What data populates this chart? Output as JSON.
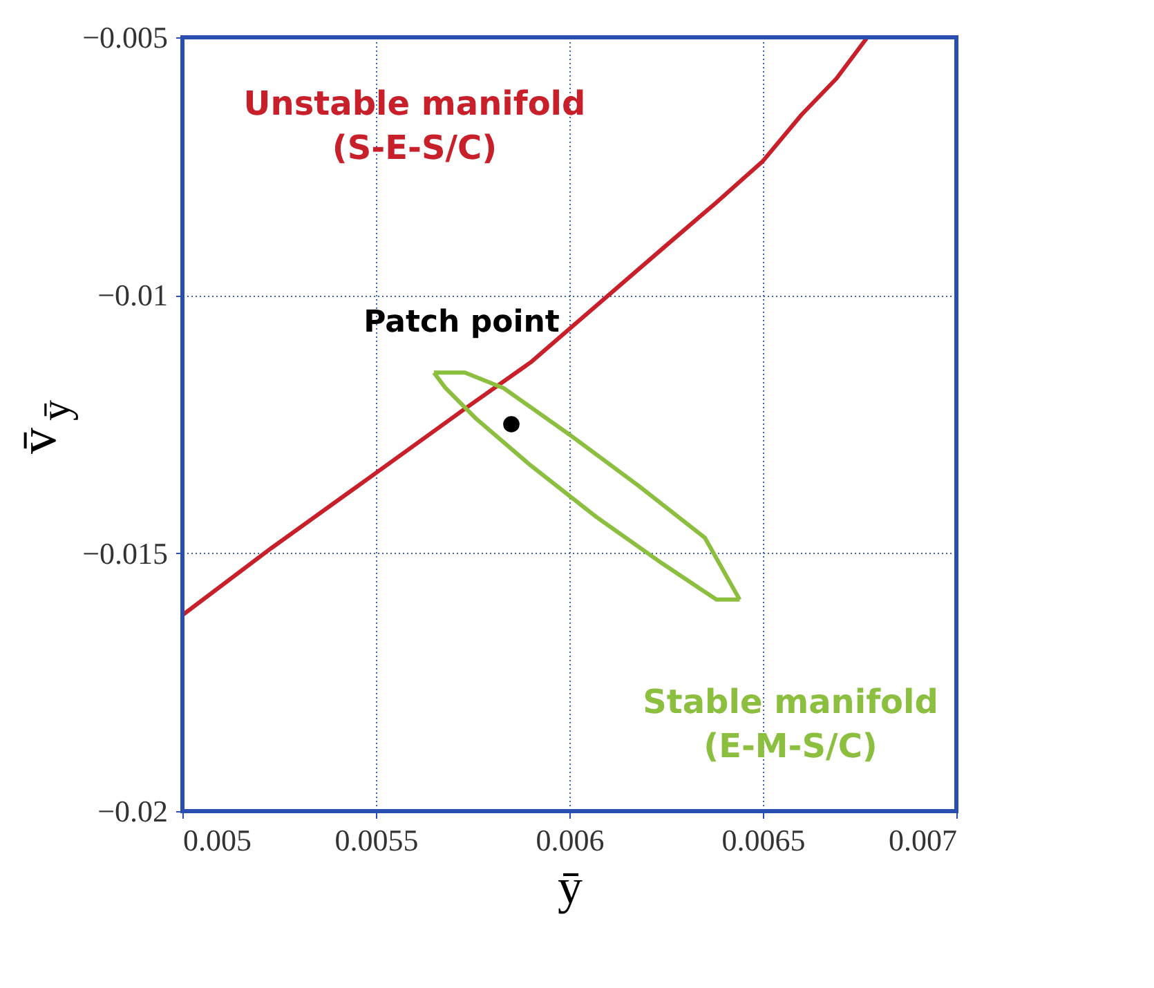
{
  "chart_data": {
    "type": "line",
    "xlabel": "ȳ",
    "ylabel": "v̄$_{ȳ}$",
    "xlim": [
      0.005,
      0.007
    ],
    "ylim": [
      -0.02,
      -0.005
    ],
    "xticks": [
      0.005,
      0.0055,
      0.006,
      0.0065,
      0.007
    ],
    "yticks": [
      -0.02,
      -0.015,
      -0.01,
      -0.005
    ],
    "grid": true,
    "line_style": "solid",
    "series": [
      {
        "name": "Unstable manifold (S-E-S/C)",
        "color": "#c8202a",
        "x": [
          0.005,
          0.00523,
          0.00549,
          0.00573,
          0.0059,
          0.00607,
          0.00624,
          0.00638,
          0.0065,
          0.0066,
          0.00669,
          0.00677
        ],
        "values": [
          -0.0162,
          -0.0149,
          -0.0135,
          -0.0122,
          -0.0113,
          -0.0102,
          -0.0091,
          -0.0082,
          -0.0074,
          -0.0065,
          -0.0058,
          -0.005
        ]
      },
      {
        "name": "Stable manifold (E-M-S/C)",
        "color": "#8cbf3f",
        "x": [
          0.00565,
          0.00573,
          0.00583,
          0.006,
          0.00618,
          0.00635,
          0.00644
        ],
        "values": [
          -0.0115,
          -0.0115,
          -0.0118,
          -0.0127,
          -0.0137,
          -0.0147,
          -0.0159
        ]
      },
      {
        "color": "#8cbf3f",
        "x": [
          0.00565,
          0.00568,
          0.00576,
          0.0059,
          0.00607,
          0.00624,
          0.00638,
          0.00644
        ],
        "values": [
          -0.0115,
          -0.0118,
          -0.0124,
          -0.0133,
          -0.0143,
          -0.0152,
          -0.0159,
          -0.0159
        ]
      },
      {
        "name": "Patch point",
        "color": "#000000",
        "type": "scatter",
        "marker": "circle",
        "x": [
          0.00585
        ],
        "values": [
          -0.0125
        ]
      }
    ]
  }
}
